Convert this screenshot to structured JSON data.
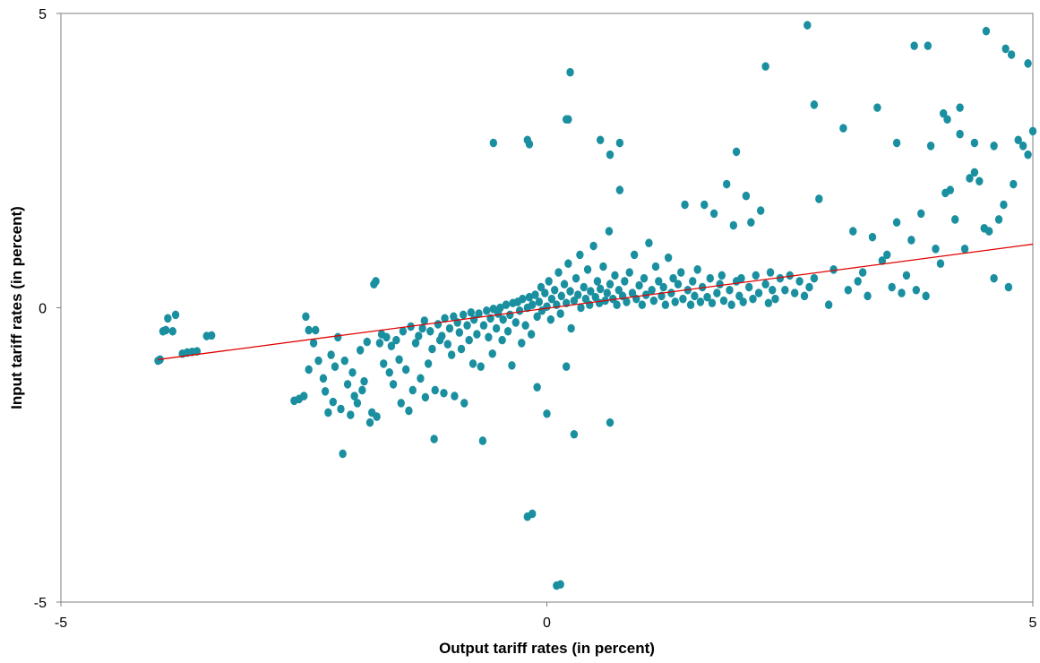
{
  "chart_data": {
    "type": "scatter",
    "title": "",
    "xlabel": "Output tariff rates (in percent)",
    "ylabel": "Input tariff rates (in percent)",
    "xlim": [
      -5,
      5
    ],
    "ylim": [
      -5,
      5
    ],
    "x_ticks": [
      "-5",
      "0",
      "5"
    ],
    "y_ticks": [
      "5",
      "0",
      "-5"
    ],
    "grid": false,
    "legend": "none",
    "point_color": "#1A8FA0",
    "fit_line_color": "#E00000",
    "fit_line": {
      "x": [
        -4.0,
        5.0
      ],
      "y": [
        -0.88,
        1.08
      ]
    },
    "points": [
      [
        -4.0,
        -0.9
      ],
      [
        -3.98,
        -0.88
      ],
      [
        -3.95,
        -0.4
      ],
      [
        -3.92,
        -0.38
      ],
      [
        -3.9,
        -0.18
      ],
      [
        -3.85,
        -0.4
      ],
      [
        -3.82,
        -0.12
      ],
      [
        -3.75,
        -0.78
      ],
      [
        -3.7,
        -0.76
      ],
      [
        -3.65,
        -0.75
      ],
      [
        -3.6,
        -0.74
      ],
      [
        -3.5,
        -0.48
      ],
      [
        -3.45,
        -0.47
      ],
      [
        -2.6,
        -1.58
      ],
      [
        -2.55,
        -1.55
      ],
      [
        -2.5,
        -1.5
      ],
      [
        -2.48,
        -0.15
      ],
      [
        -2.45,
        -1.05
      ],
      [
        -2.45,
        -0.38
      ],
      [
        -2.4,
        -0.6
      ],
      [
        -2.38,
        -0.38
      ],
      [
        -2.35,
        -0.9
      ],
      [
        -2.3,
        -1.2
      ],
      [
        -2.28,
        -1.42
      ],
      [
        -2.25,
        -1.78
      ],
      [
        -2.22,
        -0.8
      ],
      [
        -2.2,
        -1.6
      ],
      [
        -2.18,
        -1.0
      ],
      [
        -2.15,
        -0.5
      ],
      [
        -2.12,
        -1.72
      ],
      [
        -2.1,
        -2.48
      ],
      [
        -2.08,
        -0.9
      ],
      [
        -2.05,
        -1.3
      ],
      [
        -2.02,
        -1.82
      ],
      [
        -2.0,
        -1.1
      ],
      [
        -1.98,
        -1.5
      ],
      [
        -1.95,
        -1.62
      ],
      [
        -1.92,
        -0.72
      ],
      [
        -1.9,
        -1.4
      ],
      [
        -1.88,
        -1.25
      ],
      [
        -1.85,
        -0.58
      ],
      [
        -1.82,
        -1.95
      ],
      [
        -1.8,
        -1.78
      ],
      [
        -1.78,
        0.4
      ],
      [
        -1.76,
        0.45
      ],
      [
        -1.75,
        -1.85
      ],
      [
        -1.72,
        -0.6
      ],
      [
        -1.7,
        -0.45
      ],
      [
        -1.68,
        -0.95
      ],
      [
        -1.65,
        -0.5
      ],
      [
        -1.62,
        -1.1
      ],
      [
        -1.6,
        -0.65
      ],
      [
        -1.58,
        -1.3
      ],
      [
        -1.55,
        -0.55
      ],
      [
        -1.52,
        -0.88
      ],
      [
        -1.5,
        -1.62
      ],
      [
        -1.48,
        -0.4
      ],
      [
        -1.45,
        -1.05
      ],
      [
        -1.42,
        -1.75
      ],
      [
        -1.4,
        -0.32
      ],
      [
        -1.38,
        -1.4
      ],
      [
        -1.35,
        -0.6
      ],
      [
        -1.32,
        -0.48
      ],
      [
        -1.3,
        -1.2
      ],
      [
        -1.28,
        -0.35
      ],
      [
        -1.26,
        -0.22
      ],
      [
        -1.25,
        -1.52
      ],
      [
        -1.22,
        -0.95
      ],
      [
        -1.2,
        -0.4
      ],
      [
        -1.18,
        -0.7
      ],
      [
        -1.16,
        -2.23
      ],
      [
        -1.15,
        -1.4
      ],
      [
        -1.12,
        -0.28
      ],
      [
        -1.1,
        -0.55
      ],
      [
        -1.08,
        -0.48
      ],
      [
        -1.06,
        -1.45
      ],
      [
        -1.05,
        -0.18
      ],
      [
        -1.02,
        -0.62
      ],
      [
        -1.0,
        -0.35
      ],
      [
        -0.98,
        -0.8
      ],
      [
        -0.96,
        -0.15
      ],
      [
        -0.95,
        -1.5
      ],
      [
        -0.92,
        -0.25
      ],
      [
        -0.9,
        -0.42
      ],
      [
        -0.88,
        -0.7
      ],
      [
        -0.86,
        -0.12
      ],
      [
        -0.85,
        -1.62
      ],
      [
        -0.82,
        -0.3
      ],
      [
        -0.8,
        -0.55
      ],
      [
        -0.78,
        -0.08
      ],
      [
        -0.76,
        -0.95
      ],
      [
        -0.75,
        -0.2
      ],
      [
        -0.72,
        -0.45
      ],
      [
        -0.7,
        -0.1
      ],
      [
        -0.68,
        -1.0
      ],
      [
        -0.66,
        -2.26
      ],
      [
        -0.65,
        -0.3
      ],
      [
        -0.62,
        -0.05
      ],
      [
        -0.6,
        -0.5
      ],
      [
        -0.58,
        -0.18
      ],
      [
        -0.56,
        -0.78
      ],
      [
        -0.55,
        -0.02
      ],
      [
        -0.52,
        -0.35
      ],
      [
        -0.5,
        -0.1
      ],
      [
        -0.48,
        0.0
      ],
      [
        -0.46,
        -0.55
      ],
      [
        -0.45,
        -0.2
      ],
      [
        -0.42,
        0.05
      ],
      [
        -0.4,
        -0.4
      ],
      [
        -0.38,
        -0.12
      ],
      [
        -0.36,
        -0.98
      ],
      [
        -0.35,
        0.08
      ],
      [
        -0.32,
        -0.25
      ],
      [
        -0.3,
        0.1
      ],
      [
        -0.28,
        -0.05
      ],
      [
        -0.26,
        -0.6
      ],
      [
        -0.25,
        0.15
      ],
      [
        -0.22,
        -0.3
      ],
      [
        -0.2,
        0.0
      ],
      [
        -0.18,
        0.18
      ],
      [
        -0.16,
        -0.45
      ],
      [
        -0.15,
        0.05
      ],
      [
        -0.12,
        0.22
      ],
      [
        -0.1,
        -0.15
      ],
      [
        -0.08,
        0.1
      ],
      [
        -0.06,
        0.35
      ],
      [
        -0.05,
        -0.05
      ],
      [
        -0.02,
        0.25
      ],
      [
        0.0,
        0.02
      ],
      [
        0.02,
        0.45
      ],
      [
        0.04,
        -0.2
      ],
      [
        0.05,
        0.15
      ],
      [
        0.08,
        0.3
      ],
      [
        0.1,
        0.05
      ],
      [
        0.12,
        0.6
      ],
      [
        0.14,
        -0.1
      ],
      [
        0.15,
        0.2
      ],
      [
        0.18,
        0.4
      ],
      [
        0.2,
        0.08
      ],
      [
        0.22,
        0.75
      ],
      [
        0.24,
        0.28
      ],
      [
        0.25,
        -0.35
      ],
      [
        0.28,
        0.12
      ],
      [
        0.3,
        0.5
      ],
      [
        0.32,
        0.22
      ],
      [
        0.34,
        0.9
      ],
      [
        0.35,
        0.0
      ],
      [
        0.38,
        0.35
      ],
      [
        0.4,
        0.15
      ],
      [
        0.42,
        0.65
      ],
      [
        0.44,
        0.05
      ],
      [
        0.45,
        0.28
      ],
      [
        0.48,
        1.05
      ],
      [
        0.5,
        0.18
      ],
      [
        0.52,
        0.45
      ],
      [
        0.54,
        0.08
      ],
      [
        0.55,
        0.32
      ],
      [
        0.58,
        0.7
      ],
      [
        0.6,
        0.12
      ],
      [
        0.62,
        0.25
      ],
      [
        0.64,
        1.3
      ],
      [
        0.65,
        0.4
      ],
      [
        0.68,
        0.15
      ],
      [
        0.7,
        0.55
      ],
      [
        0.72,
        0.05
      ],
      [
        0.74,
        0.3
      ],
      [
        0.75,
        2.0
      ],
      [
        0.78,
        0.2
      ],
      [
        0.8,
        0.45
      ],
      [
        0.82,
        0.1
      ],
      [
        0.85,
        0.6
      ],
      [
        0.88,
        0.25
      ],
      [
        0.9,
        0.9
      ],
      [
        0.92,
        0.15
      ],
      [
        0.95,
        0.38
      ],
      [
        0.98,
        0.05
      ],
      [
        1.0,
        0.5
      ],
      [
        1.02,
        0.22
      ],
      [
        1.05,
        1.1
      ],
      [
        1.08,
        0.3
      ],
      [
        1.1,
        0.12
      ],
      [
        1.12,
        0.7
      ],
      [
        1.15,
        0.45
      ],
      [
        1.18,
        0.2
      ],
      [
        1.2,
        0.35
      ],
      [
        1.22,
        0.05
      ],
      [
        1.25,
        0.85
      ],
      [
        1.28,
        0.25
      ],
      [
        1.3,
        0.5
      ],
      [
        1.32,
        0.1
      ],
      [
        1.35,
        0.4
      ],
      [
        1.38,
        0.6
      ],
      [
        1.4,
        0.15
      ],
      [
        1.42,
        1.75
      ],
      [
        1.45,
        0.3
      ],
      [
        1.48,
        0.05
      ],
      [
        1.5,
        0.45
      ],
      [
        1.52,
        0.2
      ],
      [
        1.55,
        0.65
      ],
      [
        1.58,
        0.1
      ],
      [
        1.6,
        0.35
      ],
      [
        1.62,
        1.75
      ],
      [
        1.65,
        0.18
      ],
      [
        1.68,
        0.5
      ],
      [
        1.7,
        0.08
      ],
      [
        1.72,
        1.6
      ],
      [
        1.75,
        0.25
      ],
      [
        1.78,
        0.4
      ],
      [
        1.8,
        0.55
      ],
      [
        1.82,
        0.12
      ],
      [
        1.85,
        2.1
      ],
      [
        1.88,
        0.3
      ],
      [
        1.9,
        0.05
      ],
      [
        1.92,
        1.4
      ],
      [
        1.95,
        0.45
      ],
      [
        1.98,
        0.2
      ],
      [
        2.0,
        0.5
      ],
      [
        2.02,
        0.1
      ],
      [
        2.05,
        1.9
      ],
      [
        2.08,
        0.35
      ],
      [
        2.1,
        1.45
      ],
      [
        2.12,
        0.15
      ],
      [
        2.15,
        0.55
      ],
      [
        2.18,
        0.25
      ],
      [
        2.2,
        1.65
      ],
      [
        2.25,
        0.4
      ],
      [
        2.28,
        0.08
      ],
      [
        2.3,
        0.6
      ],
      [
        2.32,
        0.3
      ],
      [
        2.35,
        0.15
      ],
      [
        2.4,
        0.5
      ],
      [
        2.45,
        0.3
      ],
      [
        2.5,
        0.55
      ],
      [
        2.55,
        0.25
      ],
      [
        2.6,
        0.45
      ],
      [
        2.65,
        0.2
      ],
      [
        2.7,
        0.35
      ],
      [
        2.75,
        0.5
      ],
      [
        2.8,
        1.85
      ],
      [
        2.9,
        0.05
      ],
      [
        2.95,
        0.65
      ],
      [
        3.05,
        3.05
      ],
      [
        3.1,
        0.3
      ],
      [
        3.15,
        1.3
      ],
      [
        3.2,
        0.45
      ],
      [
        3.25,
        0.6
      ],
      [
        3.3,
        0.2
      ],
      [
        3.35,
        1.2
      ],
      [
        3.4,
        3.4
      ],
      [
        3.45,
        0.8
      ],
      [
        3.5,
        0.9
      ],
      [
        3.55,
        0.35
      ],
      [
        3.6,
        1.45
      ],
      [
        3.65,
        0.25
      ],
      [
        3.7,
        0.55
      ],
      [
        3.75,
        1.15
      ],
      [
        3.8,
        0.3
      ],
      [
        3.85,
        1.6
      ],
      [
        3.9,
        0.2
      ],
      [
        3.95,
        2.75
      ],
      [
        4.0,
        1.0
      ],
      [
        4.05,
        0.75
      ],
      [
        4.1,
        1.95
      ],
      [
        4.15,
        2.0
      ],
      [
        4.2,
        1.5
      ],
      [
        4.25,
        2.95
      ],
      [
        4.3,
        1.0
      ],
      [
        4.35,
        2.2
      ],
      [
        4.4,
        2.3
      ],
      [
        4.45,
        2.15
      ],
      [
        4.5,
        1.35
      ],
      [
        4.55,
        1.3
      ],
      [
        4.6,
        0.5
      ],
      [
        4.65,
        1.5
      ],
      [
        4.7,
        1.75
      ],
      [
        4.75,
        0.35
      ],
      [
        4.8,
        2.1
      ],
      [
        4.85,
        2.85
      ],
      [
        4.9,
        2.75
      ],
      [
        4.95,
        2.6
      ],
      [
        5.0,
        3.0
      ],
      [
        2.68,
        4.8
      ],
      [
        3.78,
        4.45
      ],
      [
        3.92,
        4.45
      ],
      [
        4.08,
        3.3
      ],
      [
        4.12,
        3.2
      ],
      [
        4.25,
        3.4
      ],
      [
        4.52,
        4.7
      ],
      [
        4.72,
        4.4
      ],
      [
        4.78,
        4.3
      ],
      [
        4.95,
        4.15
      ],
      [
        2.25,
        4.1
      ],
      [
        2.75,
        3.45
      ],
      [
        3.6,
        2.8
      ],
      [
        4.4,
        2.8
      ],
      [
        4.6,
        2.75
      ],
      [
        1.95,
        2.65
      ],
      [
        0.75,
        2.8
      ],
      [
        0.65,
        2.6
      ],
      [
        0.55,
        2.85
      ],
      [
        -0.55,
        2.8
      ],
      [
        -0.2,
        2.85
      ],
      [
        -0.18,
        2.78
      ],
      [
        0.22,
        3.2
      ],
      [
        0.2,
        3.2
      ],
      [
        0.24,
        4.0
      ],
      [
        -0.2,
        -3.55
      ],
      [
        -0.15,
        -3.5
      ],
      [
        0.1,
        -4.72
      ],
      [
        0.14,
        -4.7
      ],
      [
        0.65,
        -1.95
      ],
      [
        0.28,
        -2.15
      ],
      [
        0.0,
        -1.8
      ],
      [
        -0.1,
        -1.35
      ],
      [
        0.2,
        -1.0
      ]
    ]
  }
}
